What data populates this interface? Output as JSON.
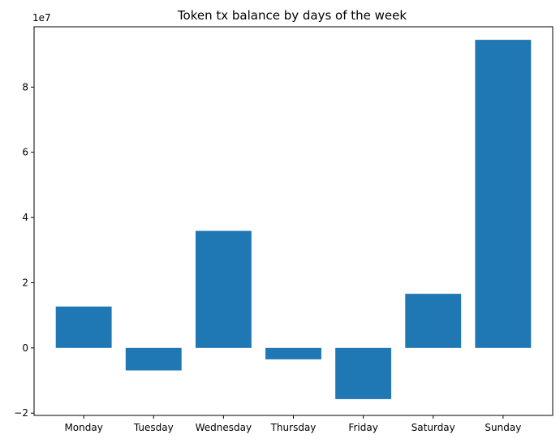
{
  "chart_data": {
    "type": "bar",
    "title": "Token tx balance by days of the week",
    "categories": [
      "Monday",
      "Tuesday",
      "Wednesday",
      "Thursday",
      "Friday",
      "Saturday",
      "Sunday"
    ],
    "values": [
      12700000,
      -6900000,
      35900000,
      -3500000,
      -15700000,
      16600000,
      94500000
    ],
    "scale_label": "1e7",
    "y_ticks": [
      -2,
      0,
      2,
      4,
      6,
      8
    ],
    "y_tick_labels": [
      "−2",
      "0",
      "2",
      "4",
      "6",
      "8"
    ],
    "ylim": [
      -20700000,
      98500000
    ],
    "bar_color": "#1f77b4",
    "grid": false,
    "xlabel": "",
    "ylabel": ""
  }
}
